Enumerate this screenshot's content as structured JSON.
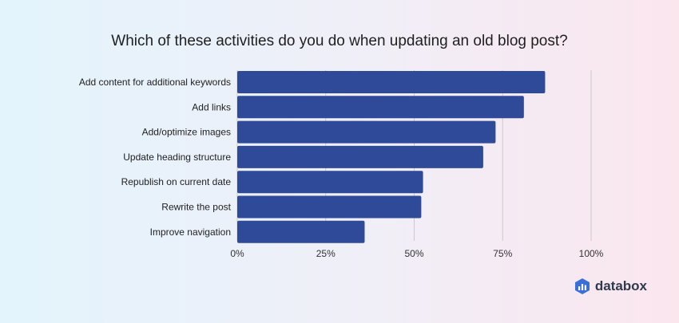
{
  "chart_data": {
    "type": "bar",
    "orientation": "horizontal",
    "title": "Which of these activities do you do when updating an old blog post?",
    "categories": [
      "Add content for additional keywords",
      "Add links",
      "Add/optimize images",
      "Update heading structure",
      "Republish on current date",
      "Rewrite the post",
      "Improve navigation"
    ],
    "values": [
      87,
      81,
      73,
      69.5,
      52.5,
      52,
      36
    ],
    "xlim": [
      0,
      100
    ],
    "xticks": [
      "0%",
      "25%",
      "50%",
      "75%",
      "100%"
    ],
    "xtick_values": [
      0,
      25,
      50,
      75,
      100
    ],
    "grid": "vertical",
    "bar_color": "#2e4a99"
  },
  "brand": {
    "name": "databox",
    "icon": "databox-logo-icon",
    "color": "#3a6fd8"
  }
}
